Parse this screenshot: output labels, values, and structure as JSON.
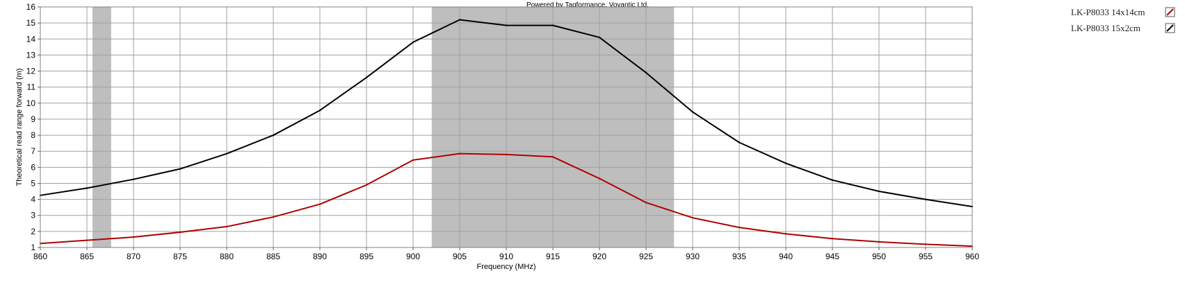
{
  "credit": "Powered by Tagformance, Voyantic Ltd.",
  "colors": {
    "band": "#bebebe",
    "grid": "#a0a0a0",
    "series_red": "#b00000",
    "series_black": "#000000"
  },
  "chart_data": {
    "type": "line",
    "xlabel": "Frequency (MHz)",
    "ylabel": "Theoretical read range forward (m)",
    "xlim": [
      860,
      960
    ],
    "ylim": [
      1,
      16
    ],
    "x_ticks": [
      "860",
      "865",
      "870",
      "875",
      "880",
      "885",
      "890",
      "895",
      "900",
      "905",
      "910",
      "915",
      "920",
      "925",
      "930",
      "935",
      "940",
      "945",
      "950",
      "955",
      "960"
    ],
    "y_ticks": [
      "1",
      "2",
      "3",
      "4",
      "5",
      "6",
      "7",
      "8",
      "9",
      "10",
      "11",
      "12",
      "13",
      "14",
      "15",
      "16"
    ],
    "grid": true,
    "legend_position": "right",
    "shaded_bands": [
      [
        865.6,
        867.6
      ],
      [
        902,
        928
      ]
    ],
    "x": [
      860,
      865,
      870,
      875,
      880,
      885,
      890,
      895,
      900,
      905,
      910,
      915,
      920,
      925,
      930,
      935,
      940,
      945,
      950,
      955,
      960
    ],
    "series": [
      {
        "name": "LK-P8033 14x14cm",
        "color": "#b00000",
        "values": [
          1.25,
          1.45,
          1.65,
          1.95,
          2.3,
          2.9,
          3.7,
          4.9,
          6.45,
          6.85,
          6.8,
          6.65,
          5.3,
          3.8,
          2.85,
          2.25,
          1.85,
          1.55,
          1.35,
          1.2,
          1.08
        ]
      },
      {
        "name": "LK-P8033 15x2cm",
        "color": "#000000",
        "values": [
          4.25,
          4.7,
          5.25,
          5.9,
          6.85,
          8.0,
          9.55,
          11.6,
          13.8,
          15.2,
          14.85,
          14.85,
          14.1,
          11.9,
          9.45,
          7.55,
          6.25,
          5.2,
          4.5,
          4.0,
          3.55
        ]
      }
    ]
  }
}
